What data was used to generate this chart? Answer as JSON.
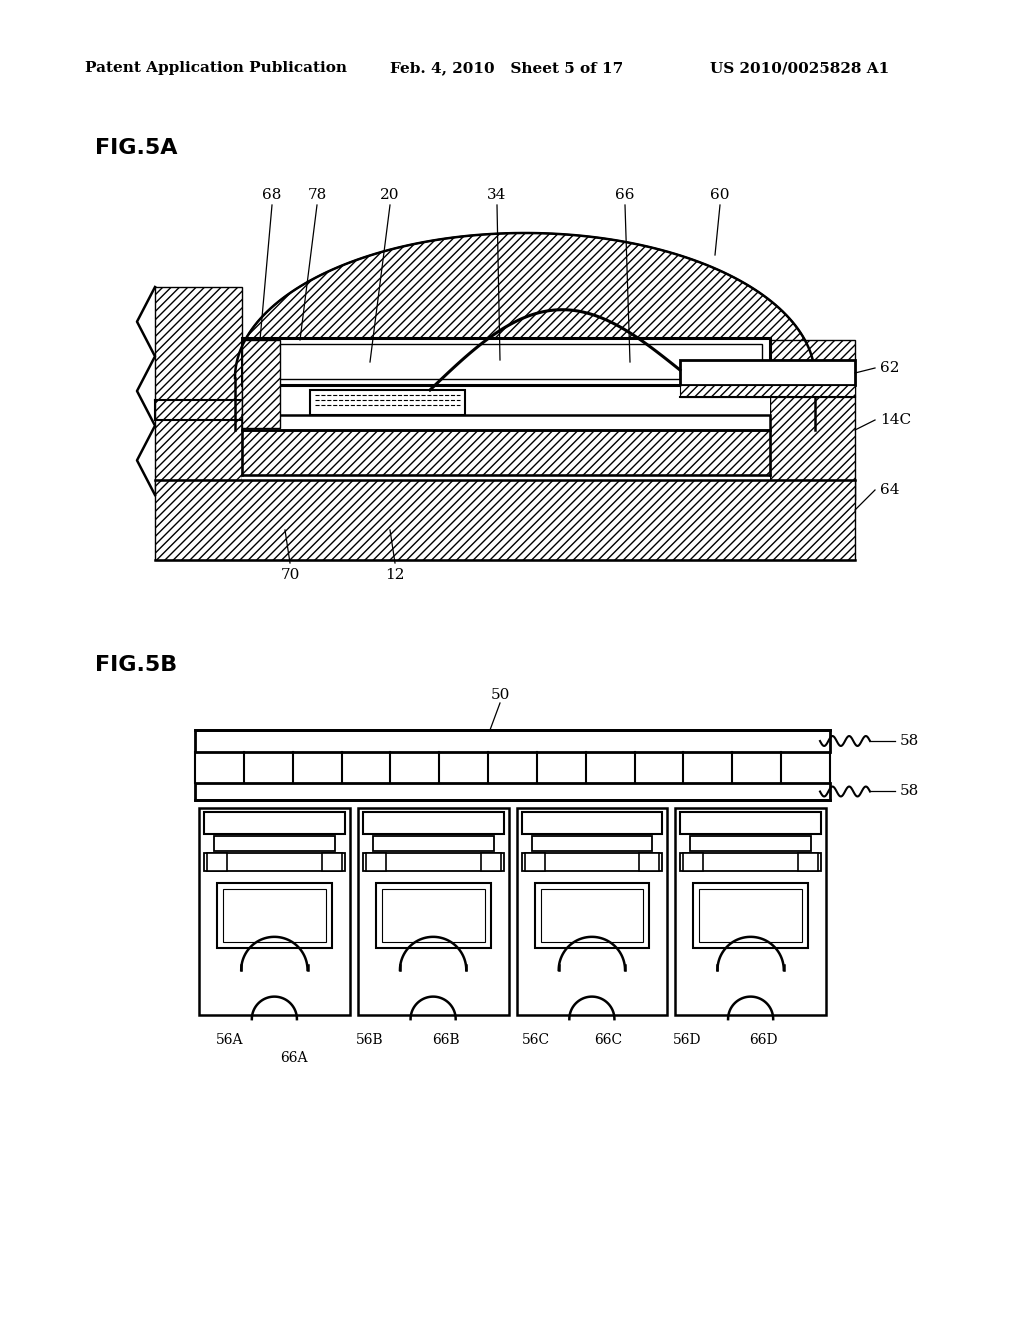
{
  "bg_color": "#ffffff",
  "header_left": "Patent Application Publication",
  "header_mid": "Feb. 4, 2010   Sheet 5 of 17",
  "header_right": "US 2010/0025828 A1",
  "fig5a_label": "FIG.5A",
  "fig5b_label": "FIG.5B"
}
